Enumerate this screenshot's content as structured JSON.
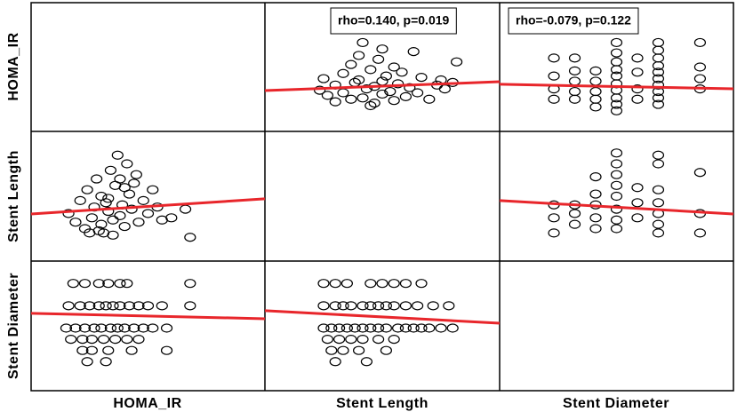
{
  "variables": [
    "HOMA_IR",
    "Stent Length",
    "Stent Diameter"
  ],
  "chart_data": [
    {
      "type": "scatter",
      "annotation": "rho=0.140, p=0.019",
      "color": "#000000",
      "xlim": [
        0,
        60
      ],
      "ylim": [
        0,
        10
      ],
      "x": [
        14,
        15,
        16,
        18,
        18,
        20,
        20,
        22,
        22,
        23,
        24,
        25,
        25,
        26,
        27,
        28,
        28,
        29,
        30,
        30,
        31,
        32,
        33,
        33,
        34,
        35,
        36,
        37,
        38,
        39,
        40,
        42,
        44,
        45,
        46,
        48,
        49,
        30,
        24,
        27
      ],
      "y": [
        3.2,
        4.1,
        2.8,
        3.6,
        2.3,
        4.5,
        3.0,
        5.2,
        2.5,
        3.8,
        4.0,
        6.9,
        2.6,
        3.3,
        4.8,
        3.5,
        2.2,
        5.6,
        3.9,
        2.9,
        4.3,
        3.1,
        2.4,
        5.0,
        3.7,
        4.6,
        2.7,
        3.4,
        6.2,
        3.0,
        4.2,
        2.5,
        3.6,
        4.0,
        3.3,
        3.8,
        5.4,
        6.4,
        5.9,
        2.0
      ],
      "trend": {
        "color": "#e8262b",
        "x": [
          0,
          60
        ],
        "y": [
          3.17,
          3.86
        ]
      }
    },
    {
      "type": "scatter",
      "annotation": "rho=-0.079, p=0.122",
      "color": "#000000",
      "xlim": [
        1.6,
        4.4
      ],
      "ylim": [
        0,
        10
      ],
      "x": [
        2.25,
        2.25,
        2.25,
        2.25,
        2.5,
        2.5,
        2.5,
        2.5,
        2.5,
        2.75,
        2.75,
        2.75,
        2.75,
        2.75,
        3.0,
        3.0,
        3.0,
        3.0,
        3.0,
        3.0,
        3.0,
        3.0,
        3.0,
        3.0,
        3.25,
        3.25,
        3.25,
        3.25,
        3.5,
        3.5,
        3.5,
        3.5,
        3.5,
        3.5,
        3.5,
        3.5,
        3.5,
        3.5,
        4.0,
        4.0,
        4.0,
        4.0
      ],
      "y": [
        5.7,
        4.3,
        3.3,
        2.5,
        5.7,
        4.7,
        3.9,
        3.1,
        2.5,
        4.7,
        3.9,
        3.1,
        2.5,
        1.9,
        6.9,
        6.1,
        5.4,
        4.8,
        4.3,
        3.7,
        3.2,
        2.6,
        2.1,
        1.6,
        5.7,
        4.6,
        3.3,
        2.5,
        6.9,
        6.3,
        5.7,
        5.1,
        4.6,
        4.1,
        3.6,
        3.1,
        2.6,
        2.1,
        6.9,
        5.0,
        4.1,
        3.3
      ],
      "trend": {
        "color": "#e8262b",
        "x": [
          1.6,
          4.4
        ],
        "y": [
          3.66,
          3.31
        ]
      }
    },
    {
      "type": "scatter",
      "color": "#000000",
      "xlim": [
        0,
        10
      ],
      "ylim": [
        0,
        60
      ],
      "x": [
        1.6,
        1.9,
        2.1,
        2.3,
        2.4,
        2.6,
        2.7,
        2.8,
        3.0,
        3.0,
        3.1,
        3.2,
        3.3,
        3.4,
        3.5,
        3.6,
        3.7,
        3.8,
        3.9,
        4.0,
        4.1,
        4.2,
        4.3,
        4.4,
        4.6,
        4.8,
        5.0,
        5.2,
        5.4,
        5.6,
        6.0,
        6.6,
        3.5,
        2.9,
        3.8,
        4.5,
        2.5,
        3.3,
        4.0,
        6.8
      ],
      "y": [
        22,
        18,
        28,
        15,
        33,
        20,
        25,
        38,
        17,
        30,
        13,
        27,
        23,
        42,
        19,
        35,
        49,
        21,
        26,
        16,
        45,
        31,
        24,
        36,
        18,
        28,
        22,
        33,
        25,
        19,
        20,
        24,
        12,
        14,
        38,
        40,
        13,
        29,
        34,
        11
      ],
      "trend": {
        "color": "#e8262b",
        "x": [
          0,
          10
        ],
        "y": [
          21.8,
          28.8
        ]
      }
    },
    {
      "type": "scatter",
      "color": "#000000",
      "xlim": [
        1.6,
        4.4
      ],
      "ylim": [
        0,
        60
      ],
      "x": [
        2.25,
        2.25,
        2.25,
        2.5,
        2.5,
        2.5,
        2.75,
        2.75,
        2.75,
        2.75,
        2.75,
        3.0,
        3.0,
        3.0,
        3.0,
        3.0,
        3.0,
        3.0,
        3.0,
        3.25,
        3.25,
        3.25,
        3.5,
        3.5,
        3.5,
        3.5,
        3.5,
        3.5,
        3.5,
        4.0,
        4.0,
        4.0
      ],
      "y": [
        26,
        20,
        13,
        26,
        22,
        17,
        39,
        31,
        26,
        20,
        15,
        50,
        45,
        40,
        35,
        30,
        24,
        19,
        15,
        34,
        27,
        20,
        49,
        45,
        33,
        27,
        22,
        17,
        13,
        41,
        22,
        13
      ],
      "trend": {
        "color": "#e8262b",
        "x": [
          1.6,
          4.4
        ],
        "y": [
          28.0,
          21.8
        ]
      }
    },
    {
      "type": "scatter",
      "color": "#000000",
      "xlim": [
        0,
        10
      ],
      "ylim": [
        1.6,
        4.5
      ],
      "x": [
        1.8,
        2.3,
        2.9,
        3.3,
        3.8,
        4.1,
        6.8,
        1.6,
        2.1,
        2.5,
        2.9,
        3.2,
        3.5,
        3.8,
        4.2,
        4.6,
        5.0,
        5.6,
        6.8,
        1.5,
        1.9,
        2.3,
        2.7,
        3.0,
        3.4,
        3.7,
        4.0,
        4.4,
        4.8,
        5.2,
        5.8,
        1.7,
        2.2,
        2.6,
        3.1,
        3.6,
        4.1,
        4.6,
        2.2,
        2.6,
        3.3,
        4.3,
        5.8,
        2.4,
        3.2
      ],
      "y": [
        4.0,
        4.0,
        4.0,
        4.0,
        4.0,
        4.0,
        4.0,
        3.5,
        3.5,
        3.5,
        3.5,
        3.5,
        3.5,
        3.5,
        3.5,
        3.5,
        3.5,
        3.5,
        3.5,
        3.0,
        3.0,
        3.0,
        3.0,
        3.0,
        3.0,
        3.0,
        3.0,
        3.0,
        3.0,
        3.0,
        3.0,
        2.75,
        2.75,
        2.75,
        2.75,
        2.75,
        2.75,
        2.75,
        2.5,
        2.5,
        2.5,
        2.5,
        2.5,
        2.25,
        2.25
      ],
      "trend": {
        "color": "#e8262b",
        "x": [
          0,
          10
        ],
        "y": [
          3.33,
          3.21
        ]
      }
    },
    {
      "type": "scatter",
      "color": "#000000",
      "xlim": [
        0,
        60
      ],
      "ylim": [
        1.6,
        4.5
      ],
      "x": [
        15,
        18,
        21,
        27,
        30,
        33,
        36,
        40,
        15,
        18,
        20,
        22,
        25,
        27,
        29,
        31,
        33,
        36,
        39,
        43,
        47,
        15,
        17,
        19,
        21,
        23,
        25,
        27,
        29,
        31,
        34,
        36,
        38,
        40,
        42,
        45,
        48,
        16,
        19,
        22,
        25,
        29,
        33,
        17,
        20,
        24,
        31,
        18,
        26
      ],
      "y": [
        4.0,
        4.0,
        4.0,
        4.0,
        4.0,
        4.0,
        4.0,
        4.0,
        3.5,
        3.5,
        3.5,
        3.5,
        3.5,
        3.5,
        3.5,
        3.5,
        3.5,
        3.5,
        3.5,
        3.5,
        3.5,
        3.0,
        3.0,
        3.0,
        3.0,
        3.0,
        3.0,
        3.0,
        3.0,
        3.0,
        3.0,
        3.0,
        3.0,
        3.0,
        3.0,
        3.0,
        3.0,
        2.75,
        2.75,
        2.75,
        2.75,
        2.75,
        2.75,
        2.5,
        2.5,
        2.5,
        2.5,
        2.25,
        2.25
      ],
      "trend": {
        "color": "#e8262b",
        "x": [
          0,
          60
        ],
        "y": [
          3.39,
          3.11
        ]
      }
    }
  ]
}
